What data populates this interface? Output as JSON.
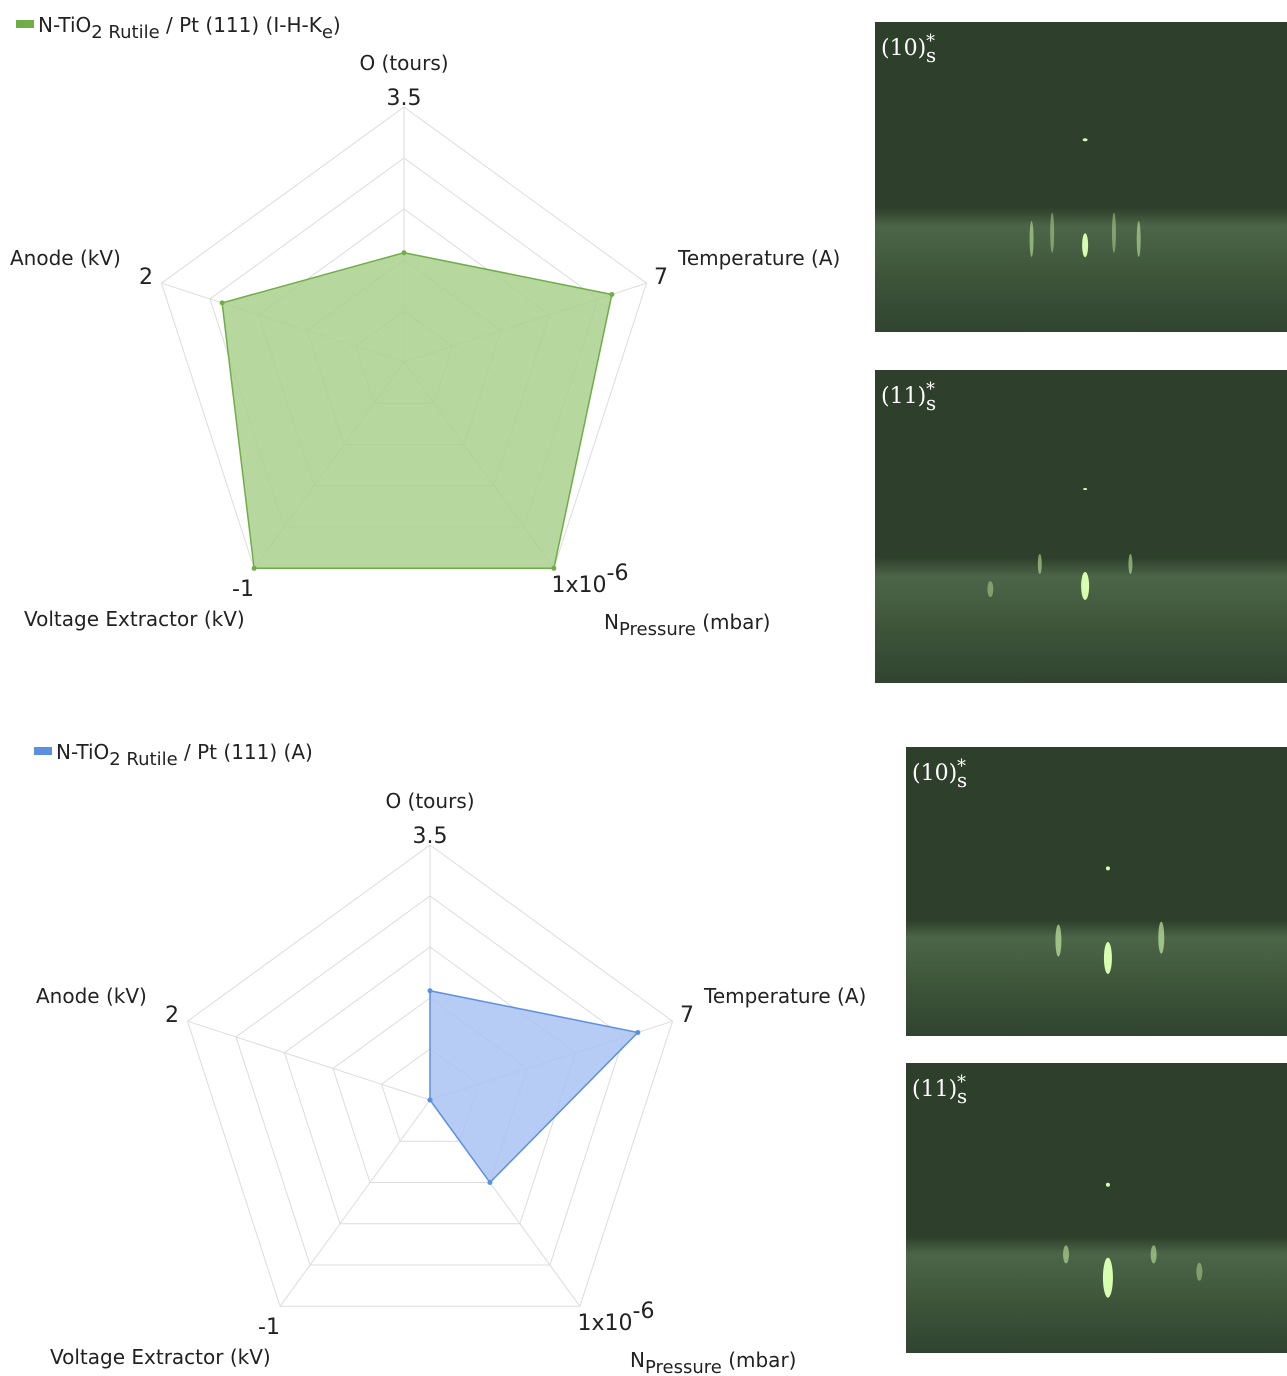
{
  "chart_data": [
    {
      "type": "radar",
      "grid_levels": 5,
      "axes": [
        {
          "name": [
            {
              "text": "O (tours)"
            }
          ],
          "max": 3.5
        },
        {
          "name": [
            {
              "text": "Temperature (A)"
            }
          ],
          "max": 7
        },
        {
          "name": [
            {
              "text": "N"
            },
            {
              "sub": "Pressure"
            },
            {
              "text": " (mbar)"
            }
          ],
          "max": {
            "value": 1e-06,
            "label": "1x10",
            "sup": "-6"
          }
        },
        {
          "name": [
            {
              "text": "Voltage Extractor (kV)"
            }
          ],
          "max": -1
        },
        {
          "name": [
            {
              "text": "Anode (kV)"
            }
          ],
          "max": 2
        }
      ],
      "series": [
        {
          "name": [
            {
              "text": "N-TiO"
            },
            {
              "sub": "2 Rutile"
            },
            {
              "text": " / Pt (111) (I-H-K"
            },
            {
              "sub": "e"
            },
            {
              "text": ")"
            }
          ],
          "color": "#70ad47",
          "fill": "#a9d18e",
          "values": [
            1.5,
            6,
            1e-06,
            -1,
            1.5
          ]
        }
      ]
    },
    {
      "type": "radar",
      "grid_levels": 5,
      "axes": [
        {
          "name": [
            {
              "text": "O (tours)"
            }
          ],
          "max": 3.5
        },
        {
          "name": [
            {
              "text": "Temperature (A)"
            }
          ],
          "max": 7
        },
        {
          "name": [
            {
              "text": "N"
            },
            {
              "sub": "Pressure"
            },
            {
              "text": " (mbar)"
            }
          ],
          "max": {
            "value": 1e-06,
            "label": "1x10",
            "sup": "-6"
          }
        },
        {
          "name": [
            {
              "text": "Voltage Extractor (kV)"
            }
          ],
          "max": -1
        },
        {
          "name": [
            {
              "text": "Anode (kV)"
            }
          ],
          "max": 2
        }
      ],
      "series": [
        {
          "name": [
            {
              "text": "N-TiO"
            },
            {
              "sub": "2 Rutile"
            },
            {
              "text": " / Pt (111) (A)"
            }
          ],
          "color": "#5b8fe0",
          "fill": "#a9c3f2",
          "values": [
            1.5,
            6,
            4e-07,
            0,
            0
          ]
        }
      ]
    }
  ],
  "images": [
    {
      "label": [
        {
          "text": "(10)"
        },
        {
          "sup": "*"
        },
        {
          "sub": "s"
        }
      ]
    },
    {
      "label": [
        {
          "text": "(11)"
        },
        {
          "sup": "*"
        },
        {
          "sub": "s"
        }
      ]
    },
    {
      "label": [
        {
          "text": "(10)"
        },
        {
          "sup": "*"
        },
        {
          "sub": "s"
        }
      ]
    },
    {
      "label": [
        {
          "text": "(11)"
        },
        {
          "sup": "*"
        },
        {
          "sub": "s"
        }
      ]
    }
  ]
}
